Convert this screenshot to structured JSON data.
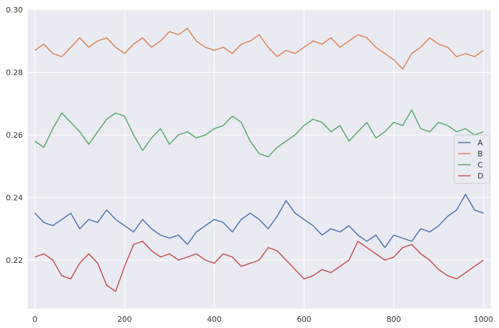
{
  "chart_data": {
    "type": "line",
    "title": "",
    "xlabel": "",
    "ylabel": "",
    "xlim": [
      -16,
      1016
    ],
    "ylim": [
      0.2045,
      0.3
    ],
    "grid": true,
    "legend_position": "center-right",
    "x_ticks": [
      0,
      200,
      400,
      600,
      800,
      1000
    ],
    "x_tick_labels": [
      "0",
      "200",
      "400",
      "600",
      "800",
      "1000"
    ],
    "y_ticks": [
      0.22,
      0.24,
      0.26,
      0.28,
      0.3
    ],
    "y_tick_labels": [
      "0.22",
      "0.24",
      "0.26",
      "0.28",
      "0.30"
    ],
    "series": [
      {
        "name": "A",
        "color": "#4c72b0",
        "x": [
          0,
          20,
          40,
          60,
          80,
          100,
          120,
          140,
          160,
          180,
          200,
          220,
          240,
          260,
          280,
          300,
          320,
          340,
          360,
          380,
          400,
          420,
          440,
          460,
          480,
          500,
          520,
          540,
          560,
          580,
          600,
          620,
          640,
          660,
          680,
          700,
          720,
          740,
          760,
          780,
          800,
          820,
          840,
          860,
          880,
          900,
          920,
          940,
          960,
          980,
          1000
        ],
        "values": [
          0.235,
          0.232,
          0.231,
          0.233,
          0.235,
          0.23,
          0.233,
          0.232,
          0.236,
          0.233,
          0.231,
          0.229,
          0.233,
          0.23,
          0.228,
          0.227,
          0.228,
          0.225,
          0.229,
          0.231,
          0.233,
          0.232,
          0.229,
          0.233,
          0.235,
          0.233,
          0.23,
          0.234,
          0.239,
          0.235,
          0.233,
          0.231,
          0.228,
          0.23,
          0.229,
          0.231,
          0.228,
          0.226,
          0.228,
          0.224,
          0.228,
          0.227,
          0.226,
          0.23,
          0.229,
          0.231,
          0.234,
          0.236,
          0.241,
          0.236,
          0.235
        ]
      },
      {
        "name": "B",
        "color": "#dd8452",
        "x": [
          0,
          20,
          40,
          60,
          80,
          100,
          120,
          140,
          160,
          180,
          200,
          220,
          240,
          260,
          280,
          300,
          320,
          340,
          360,
          380,
          400,
          420,
          440,
          460,
          480,
          500,
          520,
          540,
          560,
          580,
          600,
          620,
          640,
          660,
          680,
          700,
          720,
          740,
          760,
          780,
          800,
          820,
          840,
          860,
          880,
          900,
          920,
          940,
          960,
          980,
          1000
        ],
        "values": [
          0.287,
          0.289,
          0.286,
          0.285,
          0.288,
          0.291,
          0.288,
          0.29,
          0.291,
          0.288,
          0.286,
          0.289,
          0.291,
          0.288,
          0.29,
          0.293,
          0.292,
          0.294,
          0.29,
          0.288,
          0.287,
          0.288,
          0.286,
          0.289,
          0.29,
          0.292,
          0.288,
          0.285,
          0.287,
          0.286,
          0.288,
          0.29,
          0.289,
          0.291,
          0.288,
          0.29,
          0.292,
          0.291,
          0.288,
          0.286,
          0.284,
          0.281,
          0.286,
          0.288,
          0.291,
          0.289,
          0.288,
          0.285,
          0.286,
          0.285,
          0.287
        ]
      },
      {
        "name": "C",
        "color": "#55a868",
        "x": [
          0,
          20,
          40,
          60,
          80,
          100,
          120,
          140,
          160,
          180,
          200,
          220,
          240,
          260,
          280,
          300,
          320,
          340,
          360,
          380,
          400,
          420,
          440,
          460,
          480,
          500,
          520,
          540,
          560,
          580,
          600,
          620,
          640,
          660,
          680,
          700,
          720,
          740,
          760,
          780,
          800,
          820,
          840,
          860,
          880,
          900,
          920,
          940,
          960,
          980,
          1000
        ],
        "values": [
          0.258,
          0.256,
          0.262,
          0.267,
          0.264,
          0.261,
          0.257,
          0.261,
          0.265,
          0.267,
          0.266,
          0.26,
          0.255,
          0.259,
          0.262,
          0.257,
          0.26,
          0.261,
          0.259,
          0.26,
          0.262,
          0.263,
          0.266,
          0.264,
          0.258,
          0.254,
          0.253,
          0.256,
          0.258,
          0.26,
          0.263,
          0.265,
          0.264,
          0.261,
          0.263,
          0.258,
          0.261,
          0.264,
          0.259,
          0.261,
          0.264,
          0.263,
          0.268,
          0.262,
          0.261,
          0.264,
          0.263,
          0.261,
          0.262,
          0.26,
          0.261
        ]
      },
      {
        "name": "D",
        "color": "#c44e52",
        "x": [
          0,
          20,
          40,
          60,
          80,
          100,
          120,
          140,
          160,
          180,
          200,
          220,
          240,
          260,
          280,
          300,
          320,
          340,
          360,
          380,
          400,
          420,
          440,
          460,
          480,
          500,
          520,
          540,
          560,
          580,
          600,
          620,
          640,
          660,
          680,
          700,
          720,
          740,
          760,
          780,
          800,
          820,
          840,
          860,
          880,
          900,
          920,
          940,
          960,
          980,
          1000
        ],
        "values": [
          0.221,
          0.222,
          0.22,
          0.215,
          0.214,
          0.219,
          0.222,
          0.219,
          0.212,
          0.21,
          0.218,
          0.225,
          0.226,
          0.223,
          0.221,
          0.222,
          0.22,
          0.221,
          0.222,
          0.22,
          0.219,
          0.222,
          0.221,
          0.218,
          0.219,
          0.22,
          0.224,
          0.223,
          0.22,
          0.217,
          0.214,
          0.215,
          0.217,
          0.216,
          0.218,
          0.22,
          0.226,
          0.224,
          0.222,
          0.22,
          0.221,
          0.224,
          0.225,
          0.222,
          0.22,
          0.217,
          0.215,
          0.214,
          0.216,
          0.218,
          0.22
        ]
      }
    ]
  }
}
